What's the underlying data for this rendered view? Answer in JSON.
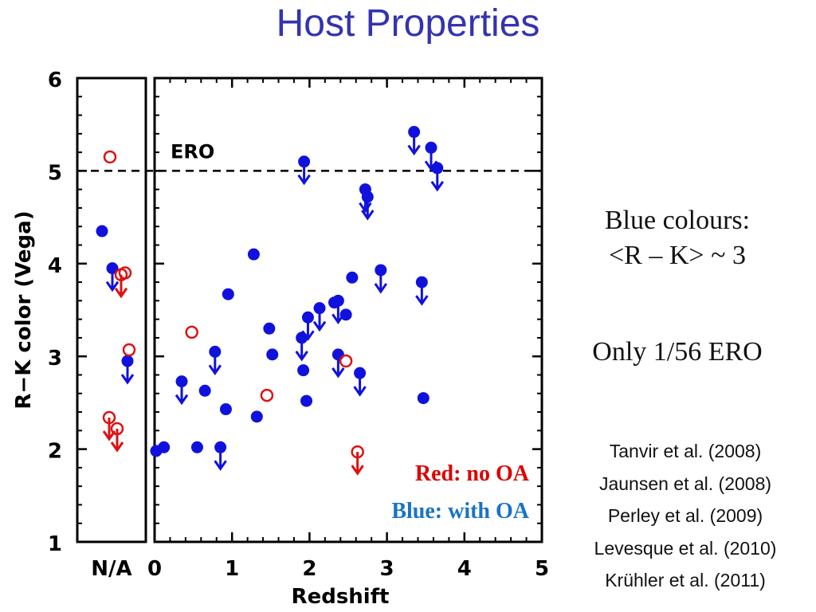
{
  "slide": {
    "title": "Host Properties",
    "notes": {
      "line1": "Blue colours:",
      "line2": "<R – K> ~ 3",
      "ero_note": "Only 1/56 ERO"
    },
    "references": [
      "Tanvir et al. (2008)",
      "Jaunsen et al. (2008)",
      "Perley et al. (2009)",
      "Levesque et al. (2010)",
      "Krühler et al. (2011)"
    ]
  },
  "chart_data": {
    "type": "scatter",
    "xlabel": "Redshift",
    "ylabel": "R−K color (Vega)",
    "xlim": [
      0,
      5
    ],
    "ylim": [
      1,
      6
    ],
    "xticks": [
      "0",
      "1",
      "2",
      "3",
      "4",
      "5"
    ],
    "yticks": [
      "1",
      "2",
      "3",
      "4",
      "5",
      "6"
    ],
    "na_label": "N/A",
    "reference_line": {
      "y": 5,
      "label": "ERO",
      "style": "dashed"
    },
    "legend": [
      {
        "text": "Red: no OA",
        "color": "#dd0000"
      },
      {
        "text": "Blue: with OA",
        "color": "#1a73c4"
      }
    ],
    "colors": {
      "blue": "#1111dd",
      "red": "#dd1111"
    },
    "series": [
      {
        "name": "Blue: with OA",
        "marker": "filled-circle",
        "points": [
          {
            "x": 0.02,
            "y": 1.98
          },
          {
            "x": 0.12,
            "y": 2.02
          },
          {
            "x": 0.35,
            "y": 2.73,
            "upper": true
          },
          {
            "x": 0.55,
            "y": 2.02
          },
          {
            "x": 0.65,
            "y": 2.63
          },
          {
            "x": 0.78,
            "y": 3.05,
            "upper": true
          },
          {
            "x": 0.85,
            "y": 2.02,
            "upper": true
          },
          {
            "x": 0.92,
            "y": 2.43
          },
          {
            "x": 0.95,
            "y": 3.67
          },
          {
            "x": 1.28,
            "y": 4.1
          },
          {
            "x": 1.32,
            "y": 2.35
          },
          {
            "x": 1.48,
            "y": 3.3
          },
          {
            "x": 1.52,
            "y": 3.02
          },
          {
            "x": 1.9,
            "y": 3.2,
            "upper": true
          },
          {
            "x": 1.92,
            "y": 2.85
          },
          {
            "x": 1.93,
            "y": 5.1,
            "upper": true
          },
          {
            "x": 1.96,
            "y": 2.52
          },
          {
            "x": 1.98,
            "y": 3.42,
            "upper": true
          },
          {
            "x": 2.13,
            "y": 3.52,
            "upper": true
          },
          {
            "x": 2.32,
            "y": 3.58
          },
          {
            "x": 2.37,
            "y": 3.6,
            "upper": true
          },
          {
            "x": 2.37,
            "y": 3.02,
            "upper": true
          },
          {
            "x": 2.47,
            "y": 3.45
          },
          {
            "x": 2.55,
            "y": 3.85
          },
          {
            "x": 2.65,
            "y": 2.82,
            "upper": true
          },
          {
            "x": 2.72,
            "y": 4.8,
            "upper": true
          },
          {
            "x": 2.75,
            "y": 4.72,
            "upper": true
          },
          {
            "x": 2.92,
            "y": 3.93,
            "upper": true
          },
          {
            "x": 3.35,
            "y": 5.42,
            "upper": true
          },
          {
            "x": 3.45,
            "y": 3.8,
            "upper": true
          },
          {
            "x": 3.47,
            "y": 2.55
          },
          {
            "x": 3.57,
            "y": 5.25,
            "upper": true
          },
          {
            "x": 3.65,
            "y": 5.03,
            "upper": true
          }
        ],
        "na_points": [
          {
            "y": 4.35
          },
          {
            "y": 3.95,
            "upper": true
          },
          {
            "y": 2.95,
            "upper": true
          }
        ]
      },
      {
        "name": "Red: no OA",
        "marker": "open-circle",
        "points": [
          {
            "x": 0.48,
            "y": 3.26
          },
          {
            "x": 1.45,
            "y": 2.58
          },
          {
            "x": 2.47,
            "y": 2.95
          },
          {
            "x": 2.62,
            "y": 1.97,
            "upper": true
          }
        ],
        "na_points": [
          {
            "y": 5.15
          },
          {
            "y": 3.88,
            "upper": true
          },
          {
            "y": 3.9
          },
          {
            "y": 3.07
          },
          {
            "y": 2.34,
            "upper": true
          },
          {
            "y": 2.22,
            "upper": true
          }
        ]
      }
    ]
  }
}
